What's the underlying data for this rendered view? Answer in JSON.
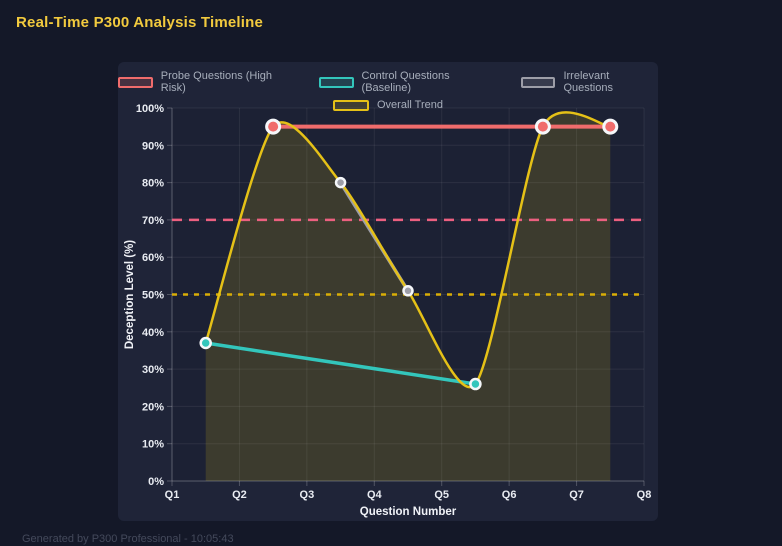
{
  "page": {
    "title": "Real-Time P300 Analysis Timeline",
    "footer": "Generated by P300 Professional - 10:05:43"
  },
  "chart_data": {
    "type": "line",
    "title": "Real-Time P300 Analysis Timeline",
    "xlabel": "Question Number",
    "ylabel": "Deception Level (%)",
    "x_range": [
      1,
      8
    ],
    "ylim": [
      0,
      100
    ],
    "y_tick_step": 10,
    "grid": true,
    "legend_position": "top",
    "x_ticks": [
      "Q1",
      "Q2",
      "Q3",
      "Q4",
      "Q5",
      "Q6",
      "Q7",
      "Q8"
    ],
    "y_ticks": [
      "0%",
      "10%",
      "20%",
      "30%",
      "40%",
      "50%",
      "60%",
      "70%",
      "80%",
      "90%",
      "100%"
    ],
    "legend_rows": [
      [
        0,
        1,
        2
      ],
      [
        3
      ]
    ],
    "series": [
      {
        "name": "Probe Questions (High Risk)",
        "color": "#f06c6c",
        "points": [
          [
            2.5,
            95
          ],
          [
            6.5,
            95
          ],
          [
            7.5,
            95
          ]
        ],
        "line_width": 4,
        "point_radius": 6.5,
        "point_border": 3,
        "smooth": false
      },
      {
        "name": "Control Questions (Baseline)",
        "color": "#33c6bc",
        "points": [
          [
            1.5,
            37
          ],
          [
            5.5,
            26
          ]
        ],
        "line_width": 3.5,
        "point_radius": 5,
        "point_border": 2.5,
        "smooth": false
      },
      {
        "name": "Irrelevant Questions",
        "color": "#9d9ea8",
        "points": [
          [
            3.5,
            80
          ],
          [
            4.5,
            51
          ]
        ],
        "line_width": 3.5,
        "point_radius": 4.5,
        "point_border": 2.5,
        "smooth": false
      },
      {
        "name": "Overall Trend",
        "color": "#e5c117",
        "points": [
          [
            1.5,
            37
          ],
          [
            2.5,
            95
          ],
          [
            3.5,
            80
          ],
          [
            4.5,
            51
          ],
          [
            5.5,
            26
          ],
          [
            6.5,
            95
          ],
          [
            7.5,
            95
          ]
        ],
        "line_width": 2.5,
        "point_radius": 0,
        "point_border": 0,
        "smooth": true,
        "fill": "rgba(231, 196, 16, 0.16)"
      }
    ],
    "thresholds": [
      {
        "value": 70,
        "color": "#ec6080",
        "dash": [
          10,
          7
        ],
        "width": 2.5
      },
      {
        "value": 50,
        "color": "#d9ae06",
        "dash": [
          5,
          6
        ],
        "width": 2.5
      }
    ],
    "styles": {
      "plot_bg": "#1c2134",
      "grid": "rgba(255,255,255,0.07)",
      "axis": "rgba(255,255,255,0.22)",
      "tick_color": "#e9ecf2",
      "axis_title_color": "#f0f2f7",
      "point_ring": "#f5f7fa"
    }
  }
}
